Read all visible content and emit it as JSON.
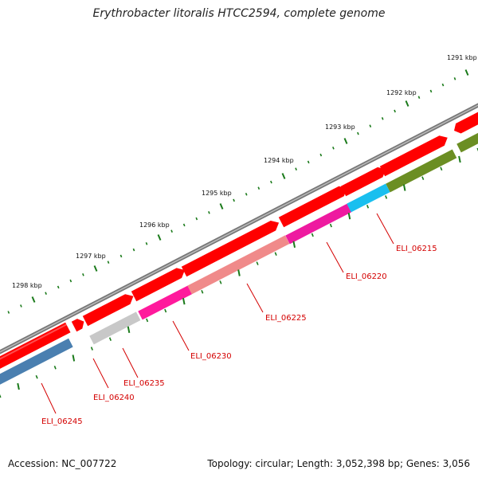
{
  "title": "Erythrobacter litoralis HTCC2594, complete genome",
  "footer": {
    "accession": "Accession: NC_007722",
    "topology": "Topology: circular; Length: 3,052,398 bp; Genes: 3,056"
  },
  "scale_labels": [
    "1291 kbp",
    "1292 kbp",
    "1293 kbp",
    "1294 kbp",
    "1295 kbp",
    "1296 kbp",
    "1297 kbp",
    "1298 kbp"
  ],
  "gene_labels": [
    "ELI_06215",
    "ELI_06220",
    "ELI_06225",
    "ELI_06230",
    "ELI_06235",
    "ELI_06240",
    "ELI_06245"
  ],
  "colors": {
    "backbone": "#888888",
    "gene_red": "#ff0000",
    "tick": "#1a7a1a",
    "label": "#d40000"
  }
}
